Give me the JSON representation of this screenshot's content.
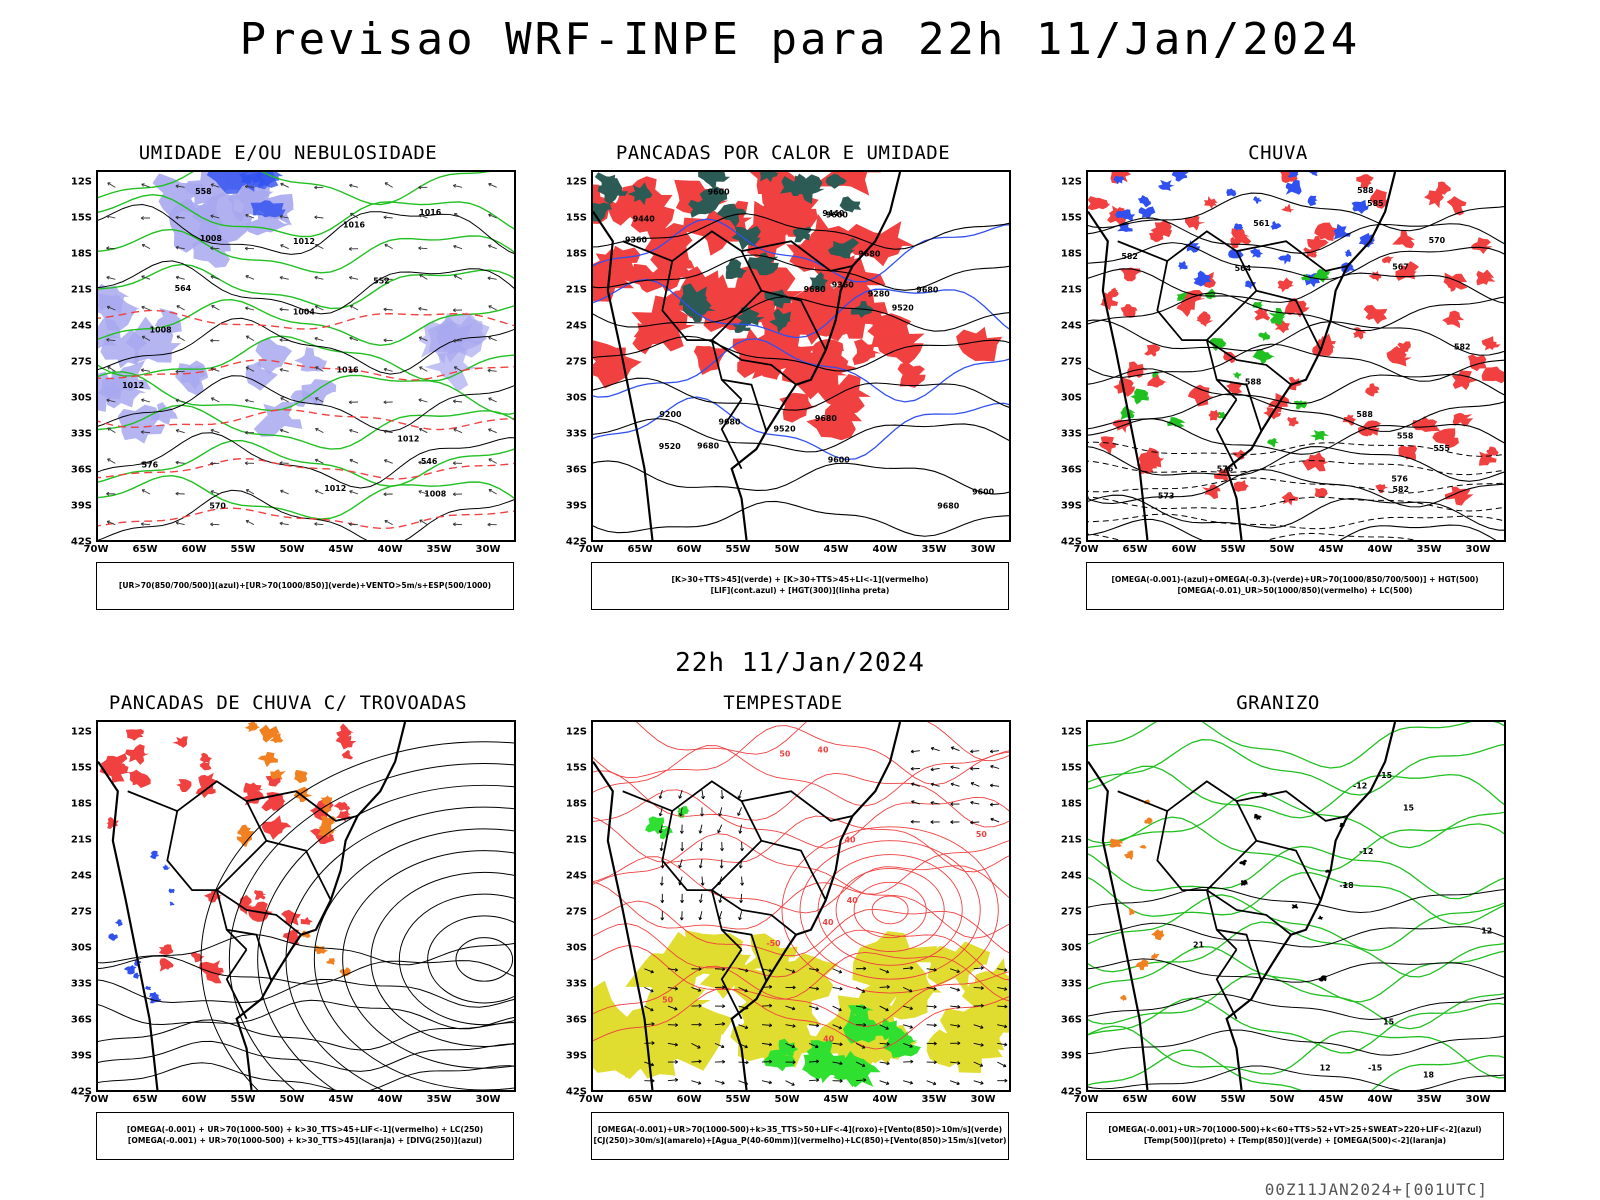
{
  "title": "Previsao WRF-INPE  para 22h 11/Jan/2024",
  "mid_label": "22h 11/Jan/2024",
  "footer": "00Z11JAN2024+[001UTC]",
  "axes": {
    "lat": [
      "12S",
      "15S",
      "18S",
      "21S",
      "24S",
      "27S",
      "30S",
      "33S",
      "36S",
      "39S",
      "42S"
    ],
    "lon": [
      "70W",
      "65W",
      "60W",
      "55W",
      "50W",
      "45W",
      "40W",
      "35W",
      "30W"
    ]
  },
  "colors": {
    "red": "#f04040",
    "blue": "#3050f0",
    "light_blue": "#a8a8f0",
    "green": "#20c020",
    "bright_green": "#30e030",
    "dark_teal": "#2c5a55",
    "yellow": "#e0dc30",
    "orange": "#f08020",
    "black": "#000000"
  },
  "panels": [
    {
      "id": "umidade",
      "title": "UMIDADE E/OU NEBULOSIDADE",
      "legend": [
        "[UR>70(850/700/500)](azul)+[UR>70(1000/850)](verde)+VENTO>5m/s+ESP(500/1000)"
      ],
      "contour_labels": [
        "1012",
        "1008",
        "1016",
        "1012",
        "1004",
        "1008",
        "1012",
        "1008",
        "1016",
        "1012",
        "1016",
        "576",
        "570",
        "564",
        "558",
        "552",
        "546"
      ]
    },
    {
      "id": "pancadas-calor",
      "title": "PANCADAS POR CALOR E UMIDADE",
      "legend": [
        "[K>30+TTS>45](verde) + [K>30+TTS>45+LI<-1](vermelho)",
        "[LIF](cont.azul) + [HGT(300)](linha preta)"
      ],
      "contour_labels": [
        "9680",
        "9680",
        "9680",
        "9680",
        "9600",
        "9680",
        "9600",
        "9520",
        "9600",
        "9520",
        "9440",
        "9360",
        "9200",
        "9280",
        "9360",
        "9440",
        "9520",
        "9600",
        "9680",
        "9680"
      ]
    },
    {
      "id": "chuva",
      "title": "CHUVA",
      "legend": [
        "[OMEGA(-0.001)-(azul)+OMEGA(-0.3)-(verde)+UR>70(1000/850/700/500)] + HGT(500)",
        "[OMEGA(-0.01)_UR>50(1000/850)(vermelho) + LC(500)"
      ],
      "contour_labels": [
        "588",
        "588",
        "582",
        "582",
        "582",
        "576",
        "576",
        "573",
        "570",
        "567",
        "564",
        "561",
        "558",
        "555",
        "585",
        "588"
      ]
    },
    {
      "id": "trovoadas",
      "title": "PANCADAS DE CHUVA C/ TROVOADAS",
      "legend": [
        "[OMEGA(-0.001) + UR>70(1000-500) + k>30_TTS>45+LIF<-1](vermelho) + LC(250)",
        "[OMEGA(-0.001) + UR>70(1000-500) + k>30_TTS>45](laranja) + [DIVG(250)](azul)"
      ],
      "contour_labels": []
    },
    {
      "id": "tempestade",
      "title": "TEMPESTADE",
      "legend": [
        "[OMEGA(-0.001)+UR>70(1000-500)+k>35_TTS>50+LIF<-4](roxo)+[Vento(850)>10m/s](verde)",
        "[CJ(250)>30m/s](amarelo)+[Agua_P(40-60mm)](vermelho)+LC(850)+[Vento(850)>15m/s](vetor)"
      ],
      "contour_labels": [
        "40",
        "50",
        "40",
        "50",
        "40",
        "40",
        "50",
        "40",
        "-50"
      ]
    },
    {
      "id": "granizo",
      "title": "GRANIZO",
      "legend": [
        "[OMEGA(-0.001)+UR>70(1000-500)+k<60+TTS>52+VT>25+SWEAT>220+LIF<-2](azul)",
        "[Temp(500)](preto) + [Temp(850)](verde) + [OMEGA(500)<-2](laranja)"
      ],
      "contour_labels": [
        "-12",
        "-15",
        "-18",
        "12",
        "15",
        "18",
        "21",
        "-12",
        "-15",
        "12",
        "15"
      ]
    }
  ]
}
